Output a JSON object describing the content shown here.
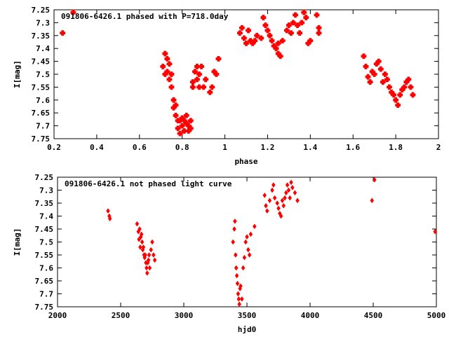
{
  "chart_data": [
    {
      "type": "scatter",
      "title": "091806-6426.1 phased with P=718.0day",
      "xlabel": "phase",
      "ylabel": "I[mag]",
      "xlim": [
        0.2,
        2.0
      ],
      "ylim": [
        7.75,
        7.25
      ],
      "y_inverted": true,
      "x_ticks": [
        "0.2",
        "0.4",
        "0.6",
        "0.8",
        "1",
        "1.2",
        "1.4",
        "1.6",
        "1.8",
        "2"
      ],
      "y_ticks": [
        "7.25",
        "7.3",
        "7.35",
        "7.4",
        "7.45",
        "7.5",
        "7.55",
        "7.6",
        "7.65",
        "7.7",
        "7.75"
      ],
      "marker": "plus-square",
      "color": "#ff0000",
      "series": [
        {
          "x": [
            0.24,
            0.29,
            0.71,
            0.72,
            0.72,
            0.73,
            0.73,
            0.74,
            0.74,
            0.75,
            0.75,
            0.76,
            0.76,
            0.77,
            0.77,
            0.78,
            0.78,
            0.79,
            0.79,
            0.8,
            0.8,
            0.81,
            0.81,
            0.82,
            0.82,
            0.83,
            0.83,
            0.84,
            0.84,
            0.85,
            0.85,
            0.86,
            0.87,
            0.87,
            0.88,
            0.88,
            0.89,
            0.9,
            0.91,
            0.93,
            0.94,
            0.95,
            0.96,
            0.97,
            1.07,
            1.08,
            1.09,
            1.1,
            1.11,
            1.12,
            1.13,
            1.14,
            1.15,
            1.17,
            1.18,
            1.19,
            1.2,
            1.21,
            1.22,
            1.23,
            1.24,
            1.25,
            1.25,
            1.26,
            1.27,
            1.29,
            1.3,
            1.31,
            1.32,
            1.33,
            1.34,
            1.35,
            1.36,
            1.37,
            1.38,
            1.39,
            1.4,
            1.43,
            1.44,
            1.44,
            1.65,
            1.66,
            1.67,
            1.68,
            1.69,
            1.7,
            1.71,
            1.72,
            1.73,
            1.74,
            1.75,
            1.76,
            1.77,
            1.78,
            1.79,
            1.8,
            1.81,
            1.82,
            1.83,
            1.84,
            1.85,
            1.86,
            1.87,
            1.88
          ],
          "y": [
            7.34,
            7.26,
            7.47,
            7.42,
            7.5,
            7.44,
            7.49,
            7.46,
            7.52,
            7.55,
            7.5,
            7.6,
            7.63,
            7.66,
            7.62,
            7.68,
            7.71,
            7.73,
            7.68,
            7.7,
            7.67,
            7.68,
            7.72,
            7.69,
            7.66,
            7.7,
            7.72,
            7.68,
            7.71,
            7.55,
            7.53,
            7.49,
            7.47,
            7.52,
            7.55,
            7.5,
            7.47,
            7.55,
            7.52,
            7.57,
            7.55,
            7.49,
            7.5,
            7.44,
            7.34,
            7.32,
            7.36,
            7.38,
            7.33,
            7.37,
            7.38,
            7.37,
            7.35,
            7.36,
            7.28,
            7.31,
            7.33,
            7.35,
            7.37,
            7.39,
            7.4,
            7.38,
            7.42,
            7.43,
            7.37,
            7.33,
            7.31,
            7.34,
            7.3,
            7.27,
            7.31,
            7.34,
            7.3,
            7.26,
            7.28,
            7.38,
            7.37,
            7.27,
            7.32,
            7.34,
            7.43,
            7.47,
            7.51,
            7.53,
            7.49,
            7.5,
            7.46,
            7.45,
            7.48,
            7.53,
            7.5,
            7.52,
            7.55,
            7.57,
            7.58,
            7.6,
            7.62,
            7.58,
            7.56,
            7.55,
            7.53,
            7.52,
            7.55,
            7.58
          ]
        }
      ]
    },
    {
      "type": "scatter",
      "title": "091806-6426.1 not phased light curve",
      "xlabel": "hjd0",
      "ylabel": "I[mag]",
      "xlim": [
        2000,
        5000
      ],
      "ylim": [
        7.75,
        7.25
      ],
      "y_inverted": true,
      "x_ticks": [
        "2000",
        "2500",
        "3000",
        "3500",
        "4000",
        "4500",
        "5000"
      ],
      "y_ticks": [
        "7.25",
        "7.3",
        "7.35",
        "7.4",
        "7.45",
        "7.5",
        "7.55",
        "7.6",
        "7.65",
        "7.7",
        "7.75"
      ],
      "marker": "diamond",
      "color": "#ff0000",
      "series": [
        {
          "x": [
            2400,
            2410,
            2415,
            2630,
            2640,
            2645,
            2650,
            2655,
            2660,
            2665,
            2670,
            2675,
            2680,
            2685,
            2690,
            2695,
            2700,
            2705,
            2710,
            2715,
            2720,
            2725,
            2730,
            2740,
            2750,
            2760,
            2770,
            3390,
            3400,
            3405,
            3410,
            3415,
            3420,
            3425,
            3430,
            3435,
            3440,
            3445,
            3450,
            3460,
            3470,
            3480,
            3490,
            3500,
            3510,
            3520,
            3530,
            3560,
            3640,
            3650,
            3660,
            3680,
            3700,
            3710,
            3720,
            3740,
            3750,
            3760,
            3770,
            3780,
            3790,
            3800,
            3810,
            3820,
            3830,
            3840,
            3850,
            3860,
            3880,
            3900,
            4490,
            4510,
            4990
          ],
          "y": [
            7.38,
            7.4,
            7.41,
            7.43,
            7.46,
            7.49,
            7.45,
            7.52,
            7.48,
            7.47,
            7.5,
            7.53,
            7.52,
            7.55,
            7.56,
            7.55,
            7.58,
            7.6,
            7.62,
            7.58,
            7.57,
            7.55,
            7.6,
            7.53,
            7.5,
            7.55,
            7.57,
            7.5,
            7.45,
            7.42,
            7.55,
            7.6,
            7.63,
            7.66,
            7.7,
            7.72,
            7.74,
            7.68,
            7.67,
            7.72,
            7.6,
            7.56,
            7.5,
            7.48,
            7.53,
            7.55,
            7.47,
            7.44,
            7.32,
            7.36,
            7.38,
            7.34,
            7.3,
            7.28,
            7.33,
            7.35,
            7.37,
            7.39,
            7.4,
            7.34,
            7.36,
            7.33,
            7.31,
            7.28,
            7.3,
            7.33,
            7.27,
            7.29,
            7.31,
            7.34,
            7.34,
            7.26,
            7.46
          ]
        }
      ]
    }
  ]
}
